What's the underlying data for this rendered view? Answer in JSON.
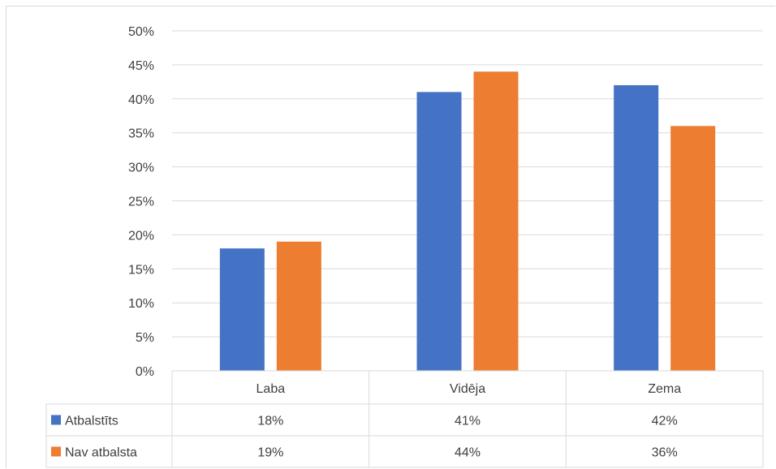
{
  "chart_data": {
    "type": "bar",
    "title": "",
    "xlabel": "",
    "ylabel": "",
    "categories": [
      "Laba",
      "Vidēja",
      "Zema"
    ],
    "series": [
      {
        "name": "Atbalstīts",
        "values": [
          18,
          41,
          42
        ],
        "labels": [
          "18%",
          "41%",
          "42%"
        ],
        "color": "#4472c4"
      },
      {
        "name": "Nav atbalsta",
        "values": [
          19,
          44,
          36
        ],
        "labels": [
          "19%",
          "44%",
          "36%"
        ],
        "color": "#ed7d31"
      }
    ],
    "ylim": [
      0,
      50
    ],
    "yticks": [
      0,
      5,
      10,
      15,
      20,
      25,
      30,
      35,
      40,
      45,
      50
    ],
    "ytick_suffix": "%",
    "grid": true,
    "legend": "data-table",
    "gridline_color": "#d9d9d9"
  }
}
